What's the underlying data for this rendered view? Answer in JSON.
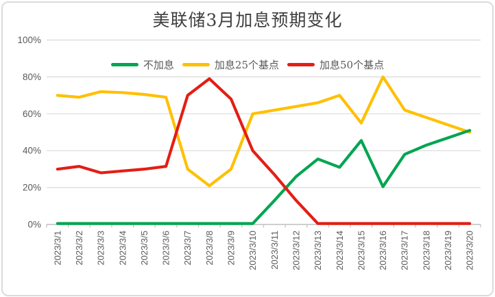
{
  "chart_data": {
    "type": "line",
    "title": "美联储3月加息预期变化",
    "categories": [
      "2023/3/1",
      "2023/3/2",
      "2023/3/3",
      "2023/3/4",
      "2023/3/5",
      "2023/3/6",
      "2023/3/7",
      "2023/3/8",
      "2023/3/9",
      "2023/3/10",
      "2023/3/11",
      "2023/3/12",
      "2023/3/13",
      "2023/3/14",
      "2023/3/15",
      "2023/3/16",
      "2023/3/17",
      "2023/3/18",
      "2023/3/19",
      "2023/3/20"
    ],
    "series": [
      {
        "name": "不加息",
        "color": "#00A551",
        "values": [
          0.5,
          0.5,
          0.5,
          0.5,
          0.5,
          0.5,
          0.5,
          0.5,
          0.5,
          0.5,
          13,
          26,
          35.5,
          31,
          45.5,
          20.5,
          38,
          43,
          47,
          51
        ]
      },
      {
        "name": "加息25个基点",
        "color": "#FFC000",
        "values": [
          70,
          69,
          72,
          71.5,
          70.5,
          69,
          30,
          21,
          30,
          60,
          62,
          64,
          66,
          70,
          55,
          80,
          62,
          58,
          54,
          50
        ]
      },
      {
        "name": "加息50个基点",
        "color": "#E31E14",
        "values": [
          30,
          31.5,
          28,
          29,
          30,
          31.5,
          70,
          79,
          68,
          40,
          27,
          13,
          0.5,
          0.5,
          0.5,
          0.5,
          0.5,
          0.5,
          0.5,
          0.5
        ]
      }
    ],
    "ylim": [
      0,
      100
    ],
    "yticks": [
      {
        "value": 0,
        "label": "0%"
      },
      {
        "value": 20,
        "label": "20%"
      },
      {
        "value": 40,
        "label": "40%"
      },
      {
        "value": 60,
        "label": "60%"
      },
      {
        "value": 80,
        "label": "80%"
      },
      {
        "value": 100,
        "label": "100%"
      }
    ],
    "grid": true,
    "legend_position": "top-inside-center",
    "grid_color": "#D9D9D9",
    "axis_color": "#BFBFBF",
    "tick_label_color": "#595959",
    "title_color": "#3F3F3F"
  }
}
